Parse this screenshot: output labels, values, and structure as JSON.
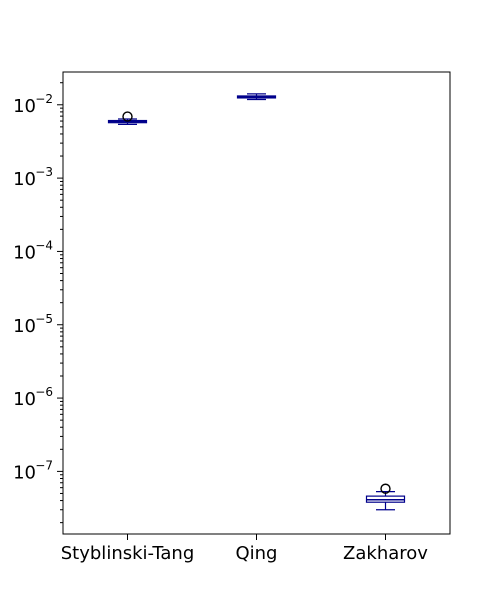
{
  "chart_data": {
    "type": "box",
    "title": "",
    "xlabel": "",
    "ylabel": "",
    "yscale": "log",
    "ylim": [
      1.4e-08,
      0.028
    ],
    "grid": false,
    "y_ticks": [
      {
        "base": "10",
        "exp": "−2",
        "value": 0.01
      },
      {
        "base": "10",
        "exp": "−3",
        "value": 0.001
      },
      {
        "base": "10",
        "exp": "−4",
        "value": 0.0001
      },
      {
        "base": "10",
        "exp": "−5",
        "value": 1e-05
      },
      {
        "base": "10",
        "exp": "−6",
        "value": 1e-06
      },
      {
        "base": "10",
        "exp": "−7",
        "value": 1e-07
      }
    ],
    "categories": [
      "Styblinski-Tang",
      "Qing",
      "Zakharov"
    ],
    "boxes": [
      {
        "whisker_low": 0.0054,
        "q1": 0.0057,
        "median": 0.0059,
        "q3": 0.0061,
        "whisker_high": 0.0064,
        "outliers": [
          0.0069
        ]
      },
      {
        "whisker_low": 0.0118,
        "q1": 0.0124,
        "median": 0.0128,
        "q3": 0.0132,
        "whisker_high": 0.0141,
        "outliers": []
      },
      {
        "whisker_low": 3e-08,
        "q1": 3.8e-08,
        "median": 4.1e-08,
        "q3": 4.6e-08,
        "whisker_high": 5.3e-08,
        "outliers": [
          5.8e-08
        ]
      }
    ],
    "colors": {
      "box": "#00008b",
      "outlier": "#000000",
      "axis": "#000000"
    }
  }
}
